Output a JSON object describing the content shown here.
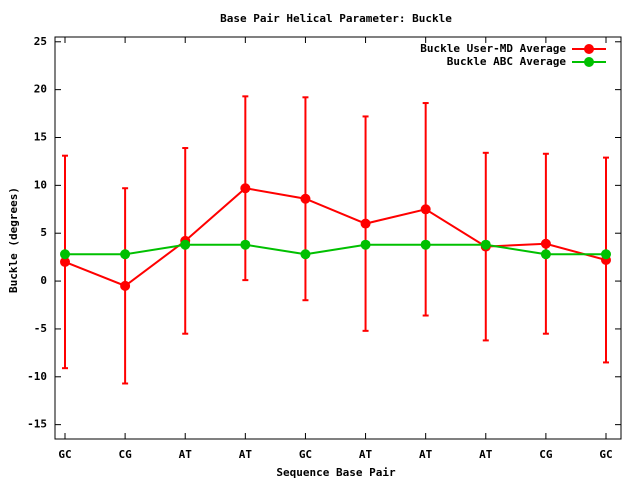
{
  "chart_data": {
    "type": "line",
    "title": "Base Pair Helical Parameter: Buckle",
    "x_label": "Sequence Base Pair",
    "y_label": "Buckle (degrees)",
    "categories": [
      "GC",
      "CG",
      "AT",
      "AT",
      "GC",
      "AT",
      "AT",
      "AT",
      "CG",
      "GC"
    ],
    "series": [
      {
        "name": "Buckle User-MD Average",
        "color": "#ff0000",
        "values": [
          2.0,
          -0.5,
          4.2,
          9.7,
          8.6,
          6.0,
          7.5,
          3.6,
          3.9,
          2.2
        ],
        "errors": [
          11.1,
          10.2,
          9.7,
          9.6,
          10.6,
          11.2,
          11.1,
          9.8,
          9.4,
          10.7
        ]
      },
      {
        "name": "Buckle ABC Average",
        "color": "#00c000",
        "values": [
          2.8,
          2.8,
          3.8,
          3.8,
          2.8,
          3.8,
          3.8,
          3.8,
          2.8,
          2.8
        ]
      }
    ],
    "ylim": [
      -16.5,
      25.5
    ],
    "yticks": [
      -15,
      -10,
      -5,
      0,
      5,
      10,
      15,
      20,
      25
    ],
    "legend": "top-right"
  }
}
